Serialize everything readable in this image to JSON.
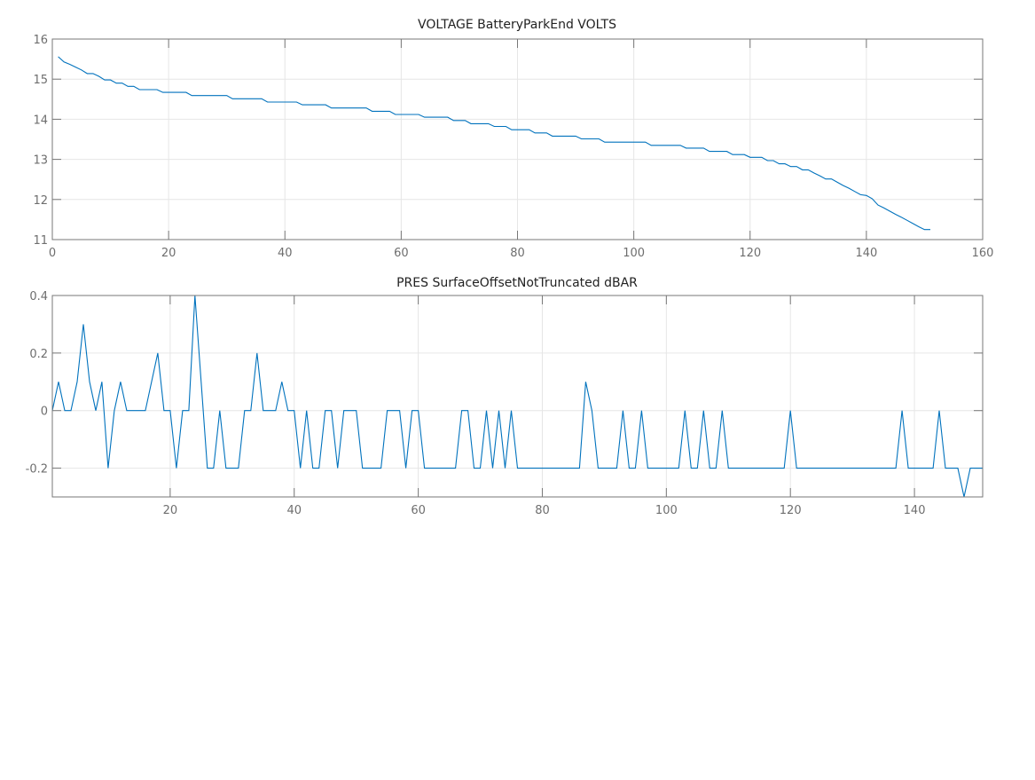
{
  "colors": {
    "line": "#0072BD",
    "grid": "#e6e6e6",
    "axis": "#777777"
  },
  "chart_data": [
    {
      "type": "line",
      "title": "VOLTAGE BatteryParkEnd VOLTS",
      "xlabel": "",
      "ylabel": "",
      "xlim": [
        0,
        160
      ],
      "ylim": [
        11,
        16
      ],
      "xticks": [
        0,
        20,
        40,
        60,
        80,
        100,
        120,
        140,
        160
      ],
      "xtick_labels": [
        "0",
        "20",
        "40",
        "60",
        "80",
        "100",
        "120",
        "140",
        "160"
      ],
      "yticks": [
        11,
        12,
        13,
        14,
        15,
        16
      ],
      "ytick_labels": [
        "11",
        "12",
        "13",
        "14",
        "15",
        "16"
      ],
      "grid": true,
      "x_start": 1,
      "values": [
        15.56,
        15.43,
        15.37,
        15.3,
        15.23,
        15.14,
        15.14,
        15.07,
        14.98,
        14.98,
        14.9,
        14.9,
        14.82,
        14.82,
        14.74,
        14.74,
        14.74,
        14.74,
        14.67,
        14.67,
        14.67,
        14.67,
        14.67,
        14.59,
        14.59,
        14.59,
        14.59,
        14.59,
        14.59,
        14.59,
        14.51,
        14.51,
        14.51,
        14.51,
        14.51,
        14.51,
        14.43,
        14.43,
        14.43,
        14.43,
        14.43,
        14.43,
        14.36,
        14.36,
        14.36,
        14.36,
        14.36,
        14.28,
        14.28,
        14.28,
        14.28,
        14.28,
        14.28,
        14.28,
        14.2,
        14.2,
        14.2,
        14.2,
        14.12,
        14.12,
        14.12,
        14.12,
        14.12,
        14.05,
        14.05,
        14.05,
        14.05,
        14.05,
        13.97,
        13.97,
        13.97,
        13.89,
        13.89,
        13.89,
        13.89,
        13.82,
        13.82,
        13.82,
        13.74,
        13.74,
        13.74,
        13.74,
        13.66,
        13.66,
        13.66,
        13.58,
        13.58,
        13.58,
        13.58,
        13.58,
        13.51,
        13.51,
        13.51,
        13.51,
        13.43,
        13.43,
        13.43,
        13.43,
        13.43,
        13.43,
        13.43,
        13.43,
        13.35,
        13.35,
        13.35,
        13.35,
        13.35,
        13.35,
        13.28,
        13.28,
        13.28,
        13.28,
        13.2,
        13.2,
        13.2,
        13.2,
        13.12,
        13.12,
        13.12,
        13.05,
        13.05,
        13.05,
        12.97,
        12.97,
        12.89,
        12.89,
        12.82,
        12.82,
        12.74,
        12.74,
        12.66,
        12.59,
        12.51,
        12.51,
        12.43,
        12.35,
        12.28,
        12.2,
        12.12,
        12.1,
        12.02,
        11.86,
        11.79,
        11.71,
        11.63,
        11.56,
        11.48,
        11.4,
        11.32,
        11.25,
        11.25
      ]
    },
    {
      "type": "line",
      "title": "PRES SurfaceOffsetNotTruncated dBAR",
      "xlabel": "",
      "ylabel": "",
      "xlim": [
        1,
        151
      ],
      "ylim": [
        -0.3,
        0.4
      ],
      "xticks": [
        20,
        40,
        60,
        80,
        100,
        120,
        140
      ],
      "xtick_labels": [
        "20",
        "40",
        "60",
        "80",
        "100",
        "120",
        "140"
      ],
      "yticks": [
        -0.2,
        0,
        0.2,
        0.4
      ],
      "ytick_labels": [
        "-0.2",
        "0",
        "0.2",
        "0.4"
      ],
      "grid": true,
      "x_start": 1,
      "values": [
        0,
        0.1,
        0,
        0,
        0.1,
        0.3,
        0.1,
        0,
        0.1,
        -0.2,
        0,
        0.1,
        0,
        0,
        0,
        0,
        0.1,
        0.2,
        0,
        0,
        -0.2,
        0,
        0,
        0.4,
        0.1,
        -0.2,
        -0.2,
        0,
        -0.2,
        -0.2,
        -0.2,
        0,
        0,
        0.2,
        0,
        0,
        0,
        0.1,
        0,
        0,
        -0.2,
        0,
        -0.2,
        -0.2,
        0,
        0,
        -0.2,
        0,
        0,
        0,
        -0.2,
        -0.2,
        -0.2,
        -0.2,
        0,
        0,
        0,
        -0.2,
        0,
        0,
        -0.2,
        -0.2,
        -0.2,
        -0.2,
        -0.2,
        -0.2,
        0,
        0,
        -0.2,
        -0.2,
        0,
        -0.2,
        0,
        -0.2,
        0,
        -0.2,
        -0.2,
        -0.2,
        -0.2,
        -0.2,
        -0.2,
        -0.2,
        -0.2,
        -0.2,
        -0.2,
        -0.2,
        0.1,
        0,
        -0.2,
        -0.2,
        -0.2,
        -0.2,
        0,
        -0.2,
        -0.2,
        0,
        -0.2,
        -0.2,
        -0.2,
        -0.2,
        -0.2,
        -0.2,
        0,
        -0.2,
        -0.2,
        0,
        -0.2,
        -0.2,
        0,
        -0.2,
        -0.2,
        -0.2,
        -0.2,
        -0.2,
        -0.2,
        -0.2,
        -0.2,
        -0.2,
        -0.2,
        0,
        -0.2,
        -0.2,
        -0.2,
        -0.2,
        -0.2,
        -0.2,
        -0.2,
        -0.2,
        -0.2,
        -0.2,
        -0.2,
        -0.2,
        -0.2,
        -0.2,
        -0.2,
        -0.2,
        -0.2,
        0,
        -0.2,
        -0.2,
        -0.2,
        -0.2,
        -0.2,
        0,
        -0.2,
        -0.2,
        -0.2,
        -0.3,
        -0.2,
        -0.2,
        -0.2
      ]
    }
  ]
}
